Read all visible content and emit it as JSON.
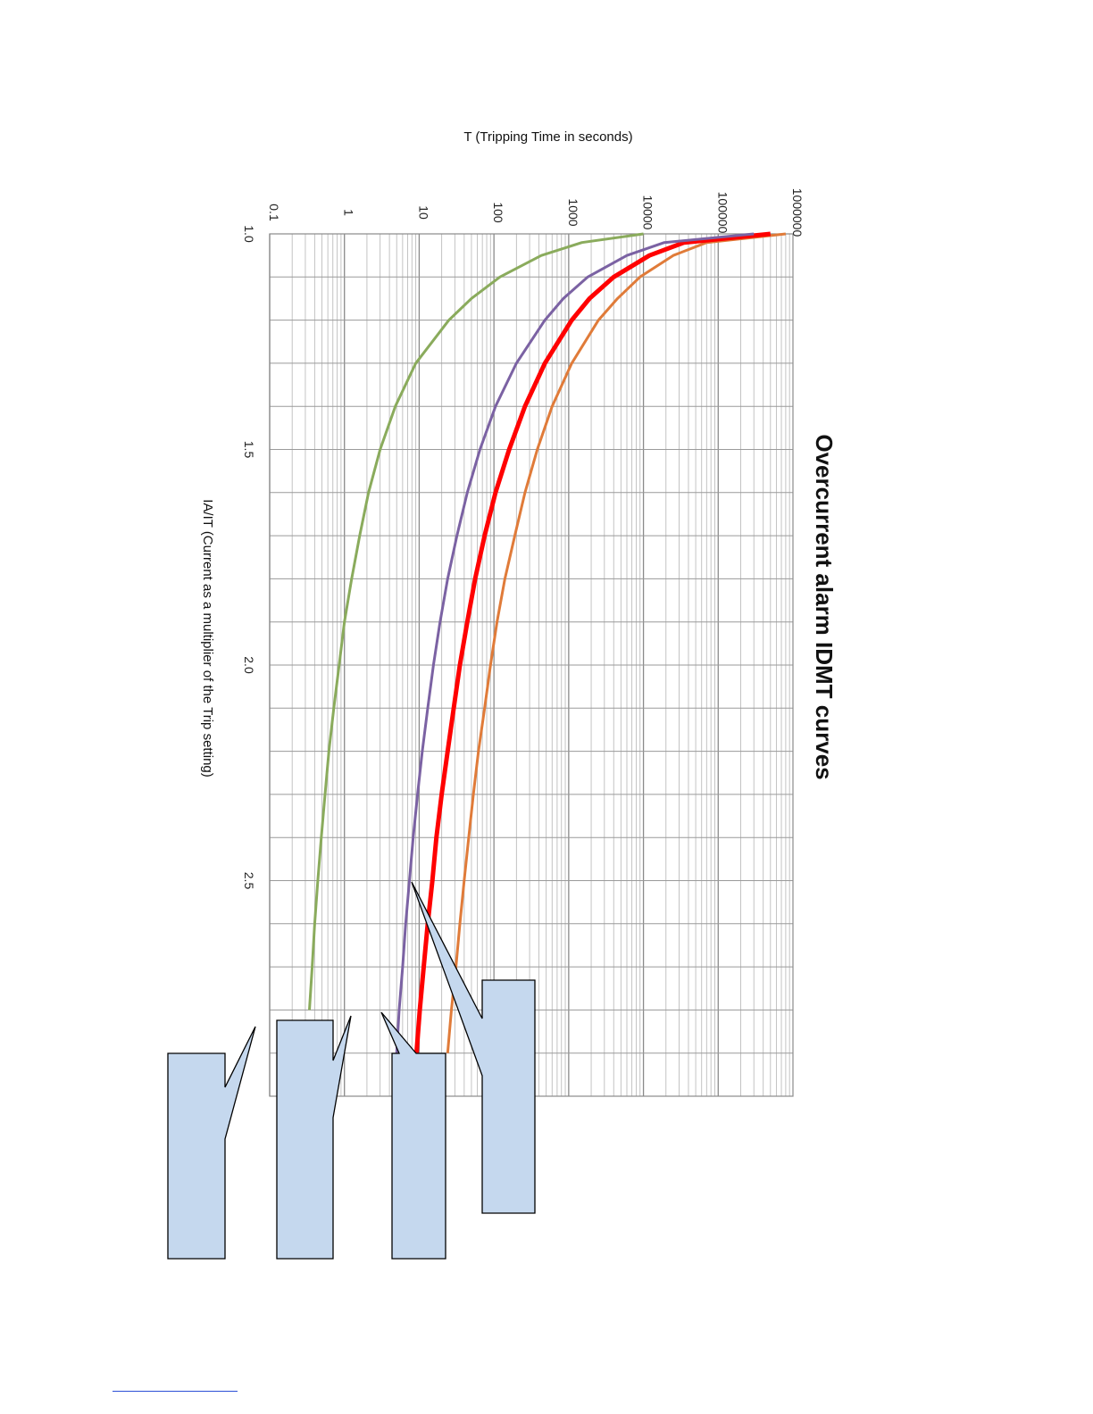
{
  "chart_data": {
    "type": "line",
    "title": "Overcurrent alarm IDMT curves",
    "xlabel": "T (Tripping Time in seconds)",
    "ylabel": "IA/IT (Current as a multiplier of the Trip setting)",
    "x_scale": "log",
    "xlim": [
      0.1,
      1000000
    ],
    "ylim": [
      1.0,
      3.0
    ],
    "x_ticks": [
      "0.1",
      "1",
      "10",
      "100",
      "1000",
      "10000",
      "100000",
      "1000000"
    ],
    "y_ticks": [
      "1.0",
      "1.5",
      "2.0",
      "2.5"
    ],
    "grid": true,
    "series": [
      {
        "color": "#e07b39",
        "y": [
          1.0,
          1.02,
          1.05,
          1.1,
          1.15,
          1.2,
          1.3,
          1.4,
          1.5,
          1.6,
          1.7,
          1.8,
          1.9,
          2.0,
          2.1,
          2.2,
          2.3,
          2.4,
          2.5,
          2.6,
          2.7,
          2.8,
          2.9
        ],
        "x": [
          800000,
          70000,
          25000,
          9000,
          4500,
          2500,
          1100,
          600,
          380,
          260,
          190,
          140,
          110,
          90,
          75,
          62,
          53,
          46,
          40,
          35,
          31,
          27,
          24
        ]
      },
      {
        "color": "#ff0000",
        "y": [
          1.0,
          1.02,
          1.05,
          1.1,
          1.15,
          1.2,
          1.3,
          1.4,
          1.5,
          1.6,
          1.7,
          1.8,
          1.9,
          2.0,
          2.1,
          2.2,
          2.3,
          2.4,
          2.5,
          2.6,
          2.7,
          2.8,
          2.9
        ],
        "x": [
          500000,
          35000,
          12000,
          4000,
          1900,
          1100,
          480,
          260,
          160,
          105,
          75,
          56,
          44,
          35,
          29,
          24,
          20,
          17,
          15,
          13,
          11.5,
          10.2,
          9.2
        ]
      },
      {
        "color": "#7b62a3",
        "y": [
          1.0,
          1.02,
          1.05,
          1.1,
          1.15,
          1.2,
          1.3,
          1.4,
          1.5,
          1.6,
          1.7,
          1.8,
          1.9,
          2.0,
          2.1,
          2.2,
          2.3,
          2.4,
          2.5,
          2.6,
          2.7,
          2.8,
          2.9
        ],
        "x": [
          300000,
          19000,
          6000,
          1800,
          850,
          480,
          200,
          105,
          65,
          44,
          32,
          24,
          19,
          15.5,
          13,
          11,
          9.5,
          8.3,
          7.4,
          6.6,
          6,
          5.4,
          5
        ]
      },
      {
        "color": "#8aab5c",
        "y": [
          1.0,
          1.02,
          1.05,
          1.1,
          1.15,
          1.2,
          1.3,
          1.4,
          1.5,
          1.6,
          1.7,
          1.8,
          1.9,
          2.0,
          2.1,
          2.2,
          2.3,
          2.4,
          2.5,
          2.6,
          2.7,
          2.8
        ],
        "x": [
          10000,
          1500,
          430,
          120,
          50,
          25,
          9,
          4.8,
          3,
          2.1,
          1.6,
          1.25,
          1.0,
          0.85,
          0.72,
          0.62,
          0.55,
          0.49,
          0.44,
          0.4,
          0.37,
          0.34
        ]
      }
    ]
  },
  "callouts": [
    {
      "label": "",
      "fill": "#c5d8ee"
    },
    {
      "label": "",
      "fill": "#c5d8ee"
    },
    {
      "label": "",
      "fill": "#c5d8ee"
    },
    {
      "label": "",
      "fill": "#c5d8ee"
    }
  ]
}
